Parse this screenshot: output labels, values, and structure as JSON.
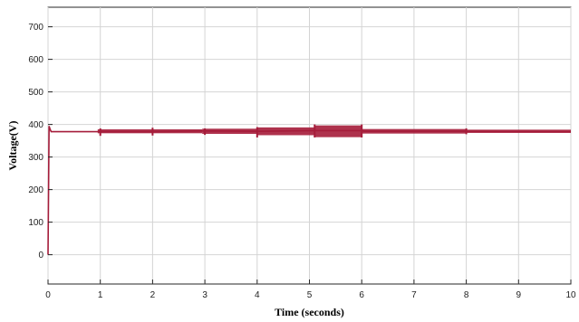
{
  "chart_data": {
    "type": "line",
    "title": "",
    "xlabel": "Time (seconds)",
    "ylabel": "Voltage(V)",
    "xlim": [
      0,
      10
    ],
    "ylim": [
      -90,
      760
    ],
    "xticks": [
      0,
      1,
      2,
      3,
      4,
      5,
      6,
      7,
      8,
      9,
      10
    ],
    "yticks": [
      0,
      100,
      200,
      300,
      400,
      500,
      600,
      700
    ],
    "grid": true,
    "legend": "none",
    "series": [
      {
        "color": "#a51c3a",
        "x": [
          0,
          0.02,
          0.04,
          0.06,
          0.1,
          0.5,
          0.95,
          1.0,
          2.0,
          3.0,
          4.0,
          5.0,
          5.1,
          6.0,
          6.05,
          8.0,
          10.0
        ],
        "y": [
          0,
          395,
          385,
          378,
          378,
          378,
          378,
          378,
          378,
          380,
          379,
          381,
          381,
          381,
          379,
          379,
          378
        ],
        "ripple_band": [
          {
            "x0": 0.95,
            "x1": 2.95,
            "amp": 6
          },
          {
            "x0": 2.95,
            "x1": 4.0,
            "amp": 8
          },
          {
            "x0": 4.0,
            "x1": 5.1,
            "amp": 12
          },
          {
            "x0": 5.1,
            "x1": 6.0,
            "amp": 18
          },
          {
            "x0": 6.0,
            "x1": 8.0,
            "amp": 7
          },
          {
            "x0": 8.0,
            "x1": 10.0,
            "amp": 5
          }
        ],
        "spikes": [
          {
            "x": 1.0,
            "y0": 365,
            "y1": 388
          },
          {
            "x": 2.0,
            "y0": 366,
            "y1": 390
          },
          {
            "x": 3.0,
            "y0": 368,
            "y1": 388
          },
          {
            "x": 4.0,
            "y0": 360,
            "y1": 392
          },
          {
            "x": 5.1,
            "y0": 360,
            "y1": 400
          },
          {
            "x": 6.0,
            "y0": 360,
            "y1": 400
          },
          {
            "x": 8.0,
            "y0": 370,
            "y1": 388
          }
        ]
      }
    ]
  }
}
